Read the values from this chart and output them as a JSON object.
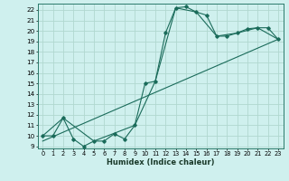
{
  "xlabel": "Humidex (Indice chaleur)",
  "bg_color": "#cff0ee",
  "line_color": "#1a6b5a",
  "grid_color": "#b0d8d0",
  "xlim": [
    -0.5,
    23.5
  ],
  "ylim": [
    8.8,
    22.6
  ],
  "xticks": [
    0,
    1,
    2,
    3,
    4,
    5,
    6,
    7,
    8,
    9,
    10,
    11,
    12,
    13,
    14,
    15,
    16,
    17,
    18,
    19,
    20,
    21,
    22,
    23
  ],
  "yticks": [
    9,
    10,
    11,
    12,
    13,
    14,
    15,
    16,
    17,
    18,
    19,
    20,
    21,
    22
  ],
  "line1_x": [
    0,
    1,
    2,
    3,
    4,
    5,
    6,
    7,
    8,
    9,
    10,
    11,
    12,
    13,
    14,
    15,
    16,
    17,
    18,
    19,
    20,
    21,
    22,
    23
  ],
  "line1_y": [
    10,
    10,
    11.7,
    9.7,
    9,
    9.5,
    9.5,
    10.2,
    9.7,
    11,
    15,
    15.2,
    19.8,
    22.2,
    22.3,
    21.8,
    21.5,
    19.5,
    19.5,
    19.8,
    20.2,
    20.3,
    20.3,
    19.2
  ],
  "line2_x": [
    0,
    2,
    5,
    9,
    11,
    13,
    15,
    17,
    19,
    21,
    23
  ],
  "line2_y": [
    10,
    11.7,
    9.5,
    11,
    15.2,
    22.2,
    21.8,
    19.5,
    19.8,
    20.3,
    19.2
  ],
  "line3_x": [
    0,
    23
  ],
  "line3_y": [
    9.5,
    19.2
  ]
}
